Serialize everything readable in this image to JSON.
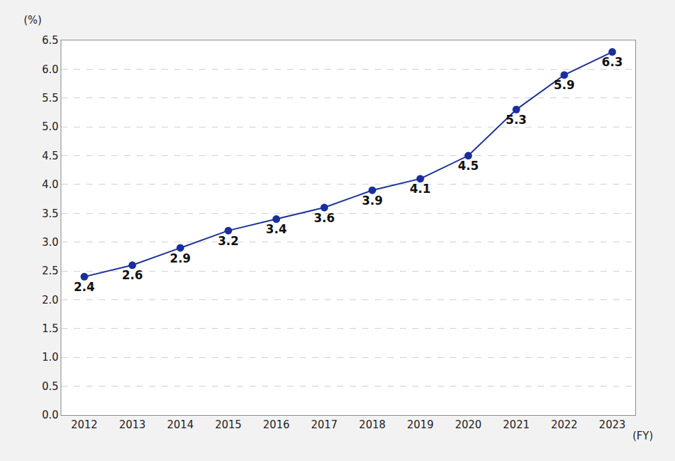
{
  "chart_data": {
    "type": "line",
    "x_label": "(FY)",
    "y_label": "(%)",
    "categories": [
      "2012",
      "2013",
      "2014",
      "2015",
      "2016",
      "2017",
      "2018",
      "2019",
      "2020",
      "2021",
      "2022",
      "2023"
    ],
    "values": [
      2.4,
      2.6,
      2.9,
      3.2,
      3.4,
      3.6,
      3.9,
      4.1,
      4.5,
      5.3,
      5.9,
      6.3
    ],
    "color": "#1a2f9c",
    "marker": "circle",
    "line_style": "solid",
    "ylim": [
      0,
      6.5
    ],
    "yticks": [
      {
        "value": 0,
        "label": "0.0"
      },
      0.5,
      {
        "value": 1,
        "label": "1.0"
      },
      1.5,
      {
        "value": 2,
        "label": "2.0"
      },
      2.5,
      {
        "value": 3,
        "label": "3.0"
      },
      3.5,
      {
        "value": 4,
        "label": "4.0"
      },
      4.5,
      {
        "value": 5,
        "label": "5.0"
      },
      5.5,
      {
        "value": 6,
        "label": "6.0"
      },
      6.5
    ],
    "grid": true,
    "data_labels": true
  }
}
